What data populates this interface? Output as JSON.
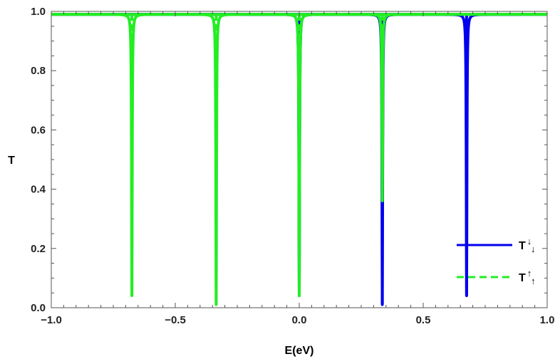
{
  "chart_data": {
    "type": "line",
    "xlabel": "E(eV)",
    "ylabel": "T",
    "xlim": [
      -1.0,
      1.0
    ],
    "ylim": [
      0.0,
      1.0
    ],
    "xticks": [
      -1.0,
      -0.5,
      0.0,
      0.5,
      1.0
    ],
    "xtick_labels": [
      "−1.0",
      "−0.5",
      "0.0",
      "0.5",
      "1.0"
    ],
    "yticks": [
      0.0,
      0.2,
      0.4,
      0.6,
      0.8,
      1.0
    ],
    "ytick_labels": [
      "0.0",
      "0.2",
      "0.4",
      "0.6",
      "0.8",
      "1.0"
    ],
    "grid": false,
    "legend_position": "bottom-right",
    "baseline": 0.99,
    "series": [
      {
        "name": "T↓↓",
        "legend_main": "T",
        "legend_arrows": "↓↓",
        "color": "#0000ee",
        "style": "solid",
        "dips": [
          {
            "x": 0.0,
            "y": 0.04
          },
          {
            "x": 0.335,
            "y": 0.01
          },
          {
            "x": 0.675,
            "y": 0.04
          }
        ]
      },
      {
        "name": "T↑↑",
        "legend_main": "T",
        "legend_arrows": "↑↑",
        "color": "#22ee22",
        "style": "dashed",
        "dips": [
          {
            "x": -0.675,
            "y": 0.04
          },
          {
            "x": -0.335,
            "y": 0.01
          },
          {
            "x": 0.0,
            "y": 0.04
          },
          {
            "x": 0.335,
            "y": 0.36
          }
        ]
      }
    ]
  }
}
